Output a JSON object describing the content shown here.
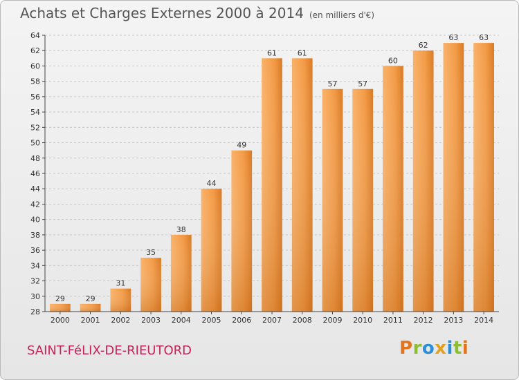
{
  "header": {
    "title": "Achats et Charges Externes 2000 à 2014",
    "subtitle": "(en milliers d'€)"
  },
  "footer": {
    "town": "SAINT-FéLIX-DE-RIEUTORD",
    "logo_letters": [
      "P",
      "r",
      "o",
      "x",
      "i",
      "t",
      "i"
    ],
    "logo_colors": [
      "#e2731f",
      "#8bbf2f",
      "#2a8fd6",
      "#e2a21f",
      "#2a8fd6",
      "#8bbf2f",
      "#e2731f"
    ]
  },
  "chart_data": {
    "type": "bar",
    "title": "Achats et Charges Externes 2000 à 2014",
    "subtitle": "(en milliers d'€)",
    "categories": [
      "2000",
      "2001",
      "2002",
      "2003",
      "2004",
      "2005",
      "2006",
      "2007",
      "2008",
      "2009",
      "2010",
      "2011",
      "2012",
      "2013",
      "2014"
    ],
    "values": [
      29,
      29,
      31,
      35,
      38,
      44,
      49,
      61,
      61,
      57,
      57,
      60,
      62,
      63,
      63
    ],
    "xlabel": "",
    "ylabel": "",
    "ylim": [
      28,
      64
    ],
    "yticks": [
      28,
      30,
      32,
      34,
      36,
      38,
      40,
      42,
      44,
      46,
      48,
      50,
      52,
      54,
      56,
      58,
      60,
      62,
      64
    ],
    "grid": true,
    "bar_color_light": "#f7a85a",
    "bar_color_dark": "#d97a25"
  }
}
